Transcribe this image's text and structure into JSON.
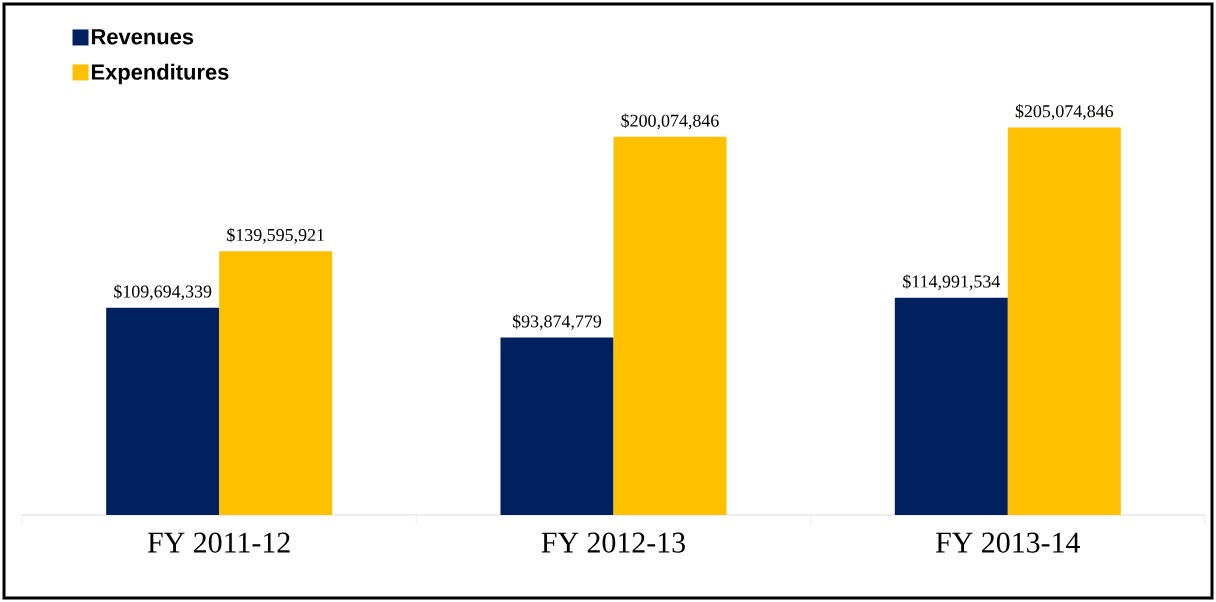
{
  "chart_data": {
    "type": "bar",
    "categories": [
      "FY 2011-12",
      "FY 2012-13",
      "FY 2013-14"
    ],
    "series": [
      {
        "name": "Revenues",
        "color": "#002060",
        "values": [
          109694339,
          93874779,
          114991534
        ],
        "value_labels": [
          "$109,694,339",
          "$93,874,779",
          "$114,991,534"
        ]
      },
      {
        "name": "Expenditures",
        "color": "#ffc000",
        "values": [
          139595921,
          200074846,
          205074846
        ],
        "value_labels": [
          "$139,595,921",
          "$200,074,846",
          "$205,074,846"
        ]
      }
    ],
    "legend": "top left"
  }
}
